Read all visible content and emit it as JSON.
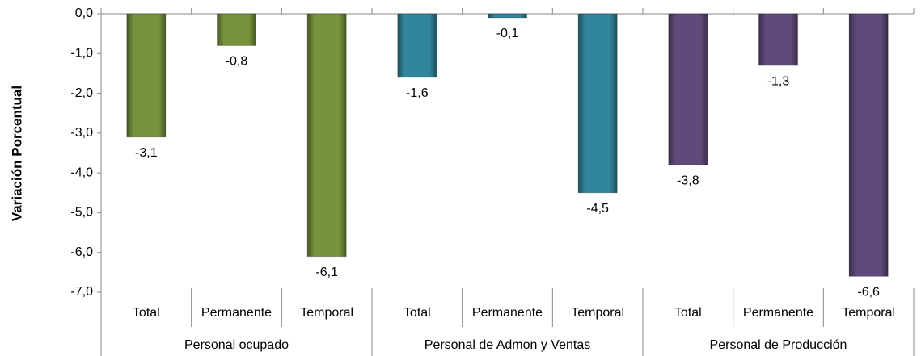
{
  "chart_data": {
    "type": "bar",
    "y_label": "Variación Porcentual",
    "ylim": [
      -7,
      0
    ],
    "yticks": [
      {
        "value": 0,
        "label": "0,0"
      },
      {
        "value": -1,
        "label": "-1,0"
      },
      {
        "value": -2,
        "label": "-2,0"
      },
      {
        "value": -3,
        "label": "-3,0"
      },
      {
        "value": -4,
        "label": "-4,0"
      },
      {
        "value": -5,
        "label": "-5,0"
      },
      {
        "value": -6,
        "label": "-6,0"
      },
      {
        "value": -7,
        "label": "-7,0"
      }
    ],
    "groups": [
      {
        "name": "Personal ocupado",
        "color": "#77933c",
        "categories": [
          "Total",
          "Permanente",
          "Temporal"
        ],
        "values": [
          -3.1,
          -0.8,
          -6.1
        ],
        "value_labels": [
          "-3,1",
          "-0,8",
          "-6,1"
        ]
      },
      {
        "name": "Personal de Admon y Ventas",
        "color": "#31859c",
        "categories": [
          "Total",
          "Permanente",
          "Temporal"
        ],
        "values": [
          -1.6,
          -0.1,
          -4.5
        ],
        "value_labels": [
          "-1,6",
          "-0,1",
          "-4,5"
        ]
      },
      {
        "name": "Personal de Producción",
        "color": "#604a7b",
        "categories": [
          "Total",
          "Permanente",
          "Temporal"
        ],
        "values": [
          -3.8,
          -1.3,
          -6.6
        ],
        "value_labels": [
          "-3,8",
          "-1,3",
          "-6,6"
        ]
      }
    ]
  }
}
